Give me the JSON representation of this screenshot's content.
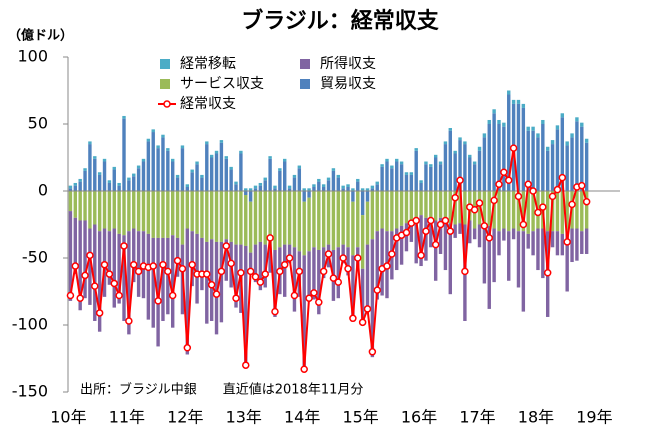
{
  "chart_data": {
    "type": "bar",
    "stacked": true,
    "title": "ブラジル：経常収支",
    "y_axis_label": "（億ドル）",
    "annotation": "出所：ブラジル中銀　　直近値は2018年11月分",
    "categories": [
      "10年",
      null,
      null,
      null,
      null,
      null,
      null,
      null,
      null,
      null,
      null,
      null,
      "11年",
      null,
      null,
      null,
      null,
      null,
      null,
      null,
      null,
      null,
      null,
      null,
      "12年",
      null,
      null,
      null,
      null,
      null,
      null,
      null,
      null,
      null,
      null,
      null,
      "13年",
      null,
      null,
      null,
      null,
      null,
      null,
      null,
      null,
      null,
      null,
      null,
      "14年",
      null,
      null,
      null,
      null,
      null,
      null,
      null,
      null,
      null,
      null,
      null,
      "15年",
      null,
      null,
      null,
      null,
      null,
      null,
      null,
      null,
      null,
      null,
      null,
      "16年",
      null,
      null,
      null,
      null,
      null,
      null,
      null,
      null,
      null,
      null,
      null,
      "17年",
      null,
      null,
      null,
      null,
      null,
      null,
      null,
      null,
      null,
      null,
      null,
      "18年",
      null,
      null,
      null,
      null,
      null,
      null,
      null,
      null,
      null,
      null,
      null,
      "19年"
    ],
    "ylim": [
      -150,
      100
    ],
    "yticks": [
      -150,
      -100,
      -50,
      0,
      50,
      100
    ],
    "grid": false,
    "series": [
      {
        "name": "経常移転",
        "color": "#4bacc6",
        "values": [
          2,
          2,
          2,
          2,
          2,
          2,
          2,
          2,
          2,
          2,
          2,
          2,
          2,
          2,
          2,
          2,
          2,
          2,
          2,
          2,
          2,
          2,
          2,
          2,
          2,
          2,
          2,
          2,
          2,
          2,
          2,
          2,
          2,
          2,
          2,
          2,
          2,
          2,
          2,
          2,
          2,
          2,
          2,
          2,
          2,
          2,
          2,
          2,
          2,
          2,
          2,
          2,
          2,
          2,
          2,
          2,
          2,
          2,
          2,
          2,
          2,
          2,
          2,
          2,
          2,
          2,
          2,
          2,
          2,
          2,
          2,
          2,
          2,
          2,
          2,
          2,
          2,
          2,
          2,
          2,
          2,
          2,
          2,
          2,
          3,
          3,
          3,
          3,
          3,
          3,
          3,
          3,
          3,
          3,
          3,
          3,
          3,
          3,
          3,
          3,
          3,
          3,
          3,
          3,
          3,
          3,
          3,
          null,
          null
        ]
      },
      {
        "name": "所得収支",
        "color": "#8064a2",
        "values": [
          -67,
          -42,
          -67,
          -58,
          -57,
          -72,
          -75,
          -51,
          -40,
          -59,
          -52,
          -64,
          -77,
          -40,
          -49,
          -50,
          -64,
          -67,
          -81,
          -62,
          -57,
          -69,
          -29,
          -52,
          -94,
          -41,
          -52,
          -39,
          -61,
          -61,
          -69,
          -60,
          -31,
          -34,
          -47,
          -51,
          -91,
          -16,
          -28,
          -36,
          -32,
          -19,
          -50,
          -35,
          -39,
          -14,
          -48,
          -34,
          -87,
          -37,
          -39,
          -48,
          -23,
          -17,
          -38,
          -38,
          -14,
          -21,
          -49,
          -17,
          -42,
          -50,
          -88,
          -51,
          -50,
          -50,
          -36,
          -31,
          -29,
          -21,
          -16,
          -29,
          -38,
          -32,
          -20,
          -45,
          -27,
          -37,
          -53,
          -10,
          -8,
          -72,
          -17,
          -8,
          -17,
          -45,
          -62,
          -40,
          -18,
          -9,
          -37,
          -8,
          -42,
          -60,
          -11,
          -18,
          -31,
          -37,
          -64,
          -12,
          -18,
          -16,
          -45,
          -25,
          -24,
          -17,
          -19,
          null,
          null
        ]
      },
      {
        "name": "サービス収支",
        "color": "#9bbb59",
        "values": [
          -15,
          -20,
          -22,
          -22,
          -28,
          -25,
          -30,
          -28,
          -30,
          -28,
          -32,
          -33,
          -30,
          -28,
          -30,
          -30,
          -32,
          -35,
          -35,
          -35,
          -35,
          -33,
          -35,
          -40,
          -28,
          -30,
          -32,
          -35,
          -38,
          -36,
          -38,
          -38,
          -36,
          -38,
          -40,
          -40,
          -38,
          -38,
          -40,
          -38,
          -40,
          -42,
          -44,
          -42,
          -40,
          -40,
          -42,
          -45,
          -40,
          -40,
          -42,
          -44,
          -42,
          -40,
          -44,
          -42,
          -40,
          -42,
          -40,
          -42,
          -40,
          -32,
          -36,
          -30,
          -28,
          -30,
          -30,
          -28,
          -26,
          -24,
          -22,
          -25,
          -18,
          -20,
          -22,
          -22,
          -20,
          -22,
          -24,
          -25,
          -24,
          -25,
          -22,
          -28,
          -25,
          -24,
          -26,
          -28,
          -30,
          -28,
          -30,
          -28,
          -30,
          -30,
          -32,
          -30,
          -28,
          -28,
          -30,
          -30,
          -30,
          -32,
          -30,
          -28,
          -28,
          -30,
          -28,
          null,
          null
        ]
      },
      {
        "name": "貿易収支",
        "color": "#4f81bd",
        "values": [
          2,
          4,
          7,
          15,
          35,
          24,
          12,
          22,
          6,
          16,
          4,
          54,
          8,
          11,
          17,
          22,
          37,
          44,
          32,
          40,
          30,
          22,
          10,
          32,
          3,
          14,
          20,
          10,
          35,
          25,
          28,
          36,
          24,
          16,
          5,
          28,
          -3,
          -8,
          2,
          4,
          8,
          24,
          2,
          15,
          22,
          2,
          10,
          17,
          -8,
          -5,
          3,
          7,
          3,
          8,
          15,
          10,
          2,
          3,
          -8,
          7,
          -18,
          -8,
          2,
          5,
          18,
          22,
          17,
          22,
          20,
          12,
          12,
          30,
          6,
          20,
          18,
          25,
          20,
          35,
          45,
          28,
          38,
          35,
          25,
          20,
          30,
          40,
          50,
          58,
          50,
          48,
          72,
          65,
          65,
          62,
          45,
          45,
          40,
          50,
          30,
          35,
          46,
          55,
          34,
          40,
          52,
          48,
          36,
          null,
          null
        ]
      },
      {
        "name": "経常収支",
        "type": "line",
        "color": "#ff0000",
        "values": [
          -78,
          -56,
          -80,
          -63,
          -48,
          -71,
          -91,
          -55,
          -62,
          -69,
          -78,
          -41,
          -97,
          -55,
          -60,
          -56,
          -57,
          -56,
          -82,
          -55,
          -60,
          -78,
          -52,
          -58,
          -117,
          -55,
          -62,
          -62,
          -62,
          -70,
          -77,
          -60,
          -41,
          -54,
          -80,
          -61,
          -130,
          -60,
          -64,
          -68,
          -62,
          -35,
          -90,
          -60,
          -55,
          -50,
          -78,
          -60,
          -133,
          -80,
          -76,
          -83,
          -60,
          -47,
          -65,
          -68,
          -50,
          -58,
          -95,
          -50,
          -98,
          -88,
          -120,
          -74,
          -58,
          -56,
          -47,
          -35,
          -33,
          -31,
          -24,
          -22,
          -48,
          -30,
          -22,
          -40,
          -25,
          -22,
          -30,
          -5,
          8,
          -60,
          -12,
          -14,
          -9,
          -26,
          -35,
          -7,
          5,
          14,
          8,
          32,
          -4,
          -25,
          5,
          0,
          -16,
          -12,
          -61,
          -4,
          1,
          10,
          -38,
          -10,
          3,
          4,
          -8,
          null,
          null
        ]
      }
    ]
  }
}
